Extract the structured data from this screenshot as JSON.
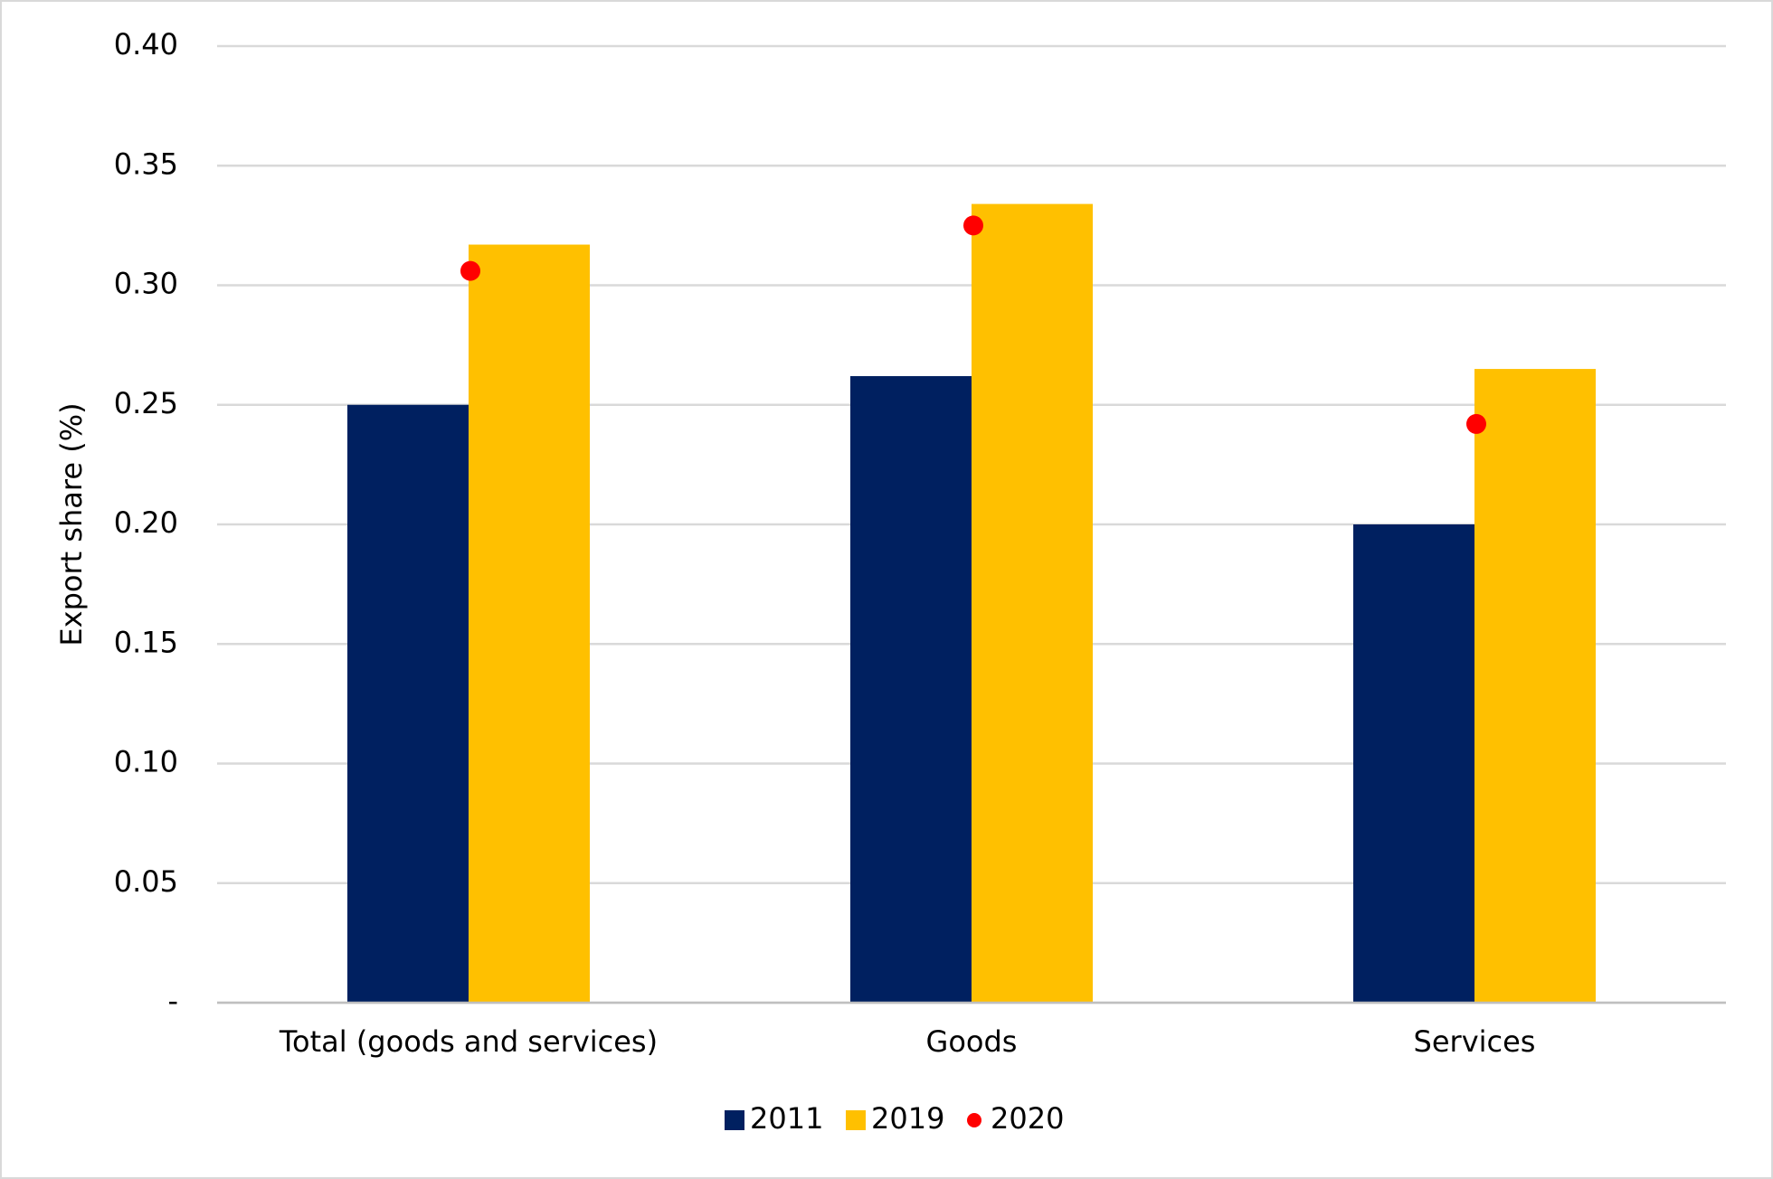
{
  "chart_data": {
    "type": "bar",
    "y_label": "Export share (%)",
    "categories": [
      "Total (goods and services)",
      "Goods",
      "Services"
    ],
    "series": [
      {
        "name": "2011",
        "color": "#002060",
        "type": "bar",
        "values": [
          0.25,
          0.262,
          0.2
        ]
      },
      {
        "name": "2019",
        "color": "#FFC000",
        "type": "bar",
        "values": [
          0.317,
          0.334,
          0.265
        ]
      },
      {
        "name": "2020",
        "color": "#FF0000",
        "type": "scatter",
        "values": [
          0.306,
          0.325,
          0.242
        ]
      }
    ],
    "ylim": [
      0,
      0.4
    ],
    "yticks": [
      {
        "value": 0,
        "label": "-"
      },
      0.05,
      {
        "value": 0.1,
        "label": "0.10"
      },
      0.15,
      {
        "value": 0.2,
        "label": "0.20"
      },
      0.25,
      {
        "value": 0.3,
        "label": "0.30"
      },
      0.35,
      {
        "value": 0.4,
        "label": "0.40"
      }
    ],
    "grid": true,
    "legend": "bottom"
  }
}
